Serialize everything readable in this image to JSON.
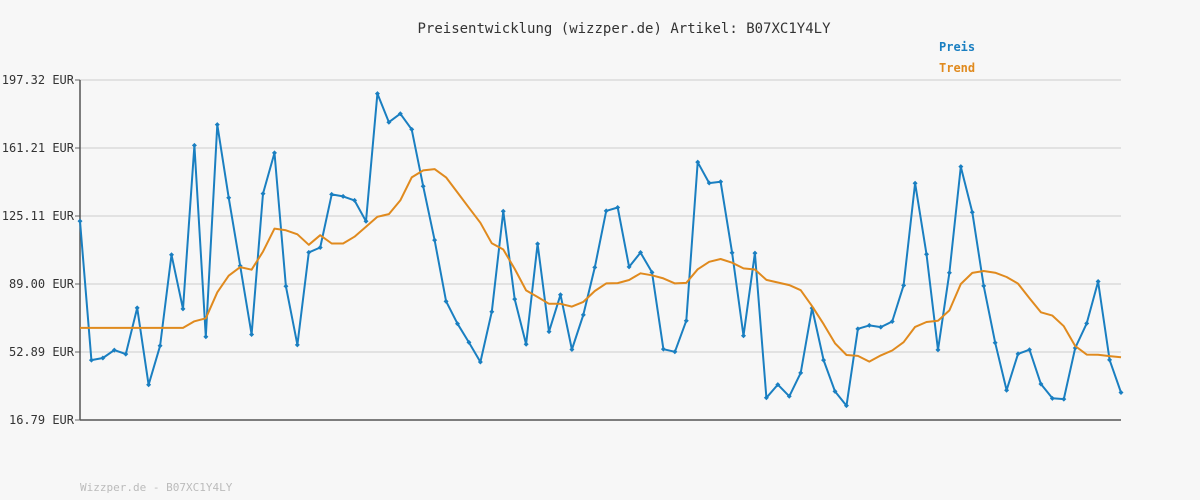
{
  "chart_data": {
    "type": "line",
    "title": "Preisentwicklung (wizzper.de) Artikel: B07XC1Y4LY",
    "footer": "Wizzper.de - B07XC1Y4LY",
    "y_tick_values": [
      16.79,
      52.89,
      89.0,
      125.11,
      161.21,
      197.32
    ],
    "y_tick_labels": [
      "16.79 EUR",
      "52.89 EUR",
      "89.00 EUR",
      "125.11 EUR",
      "161.21 EUR",
      "197.32 EUR"
    ],
    "ylim": [
      16.79,
      197.32
    ],
    "grid": true,
    "legend_position": "top-right",
    "series": [
      {
        "name": "Preis",
        "color": "#1a7fc1",
        "values": [
          122.4,
          48.6,
          49.7,
          53.9,
          51.8,
          76.3,
          35.5,
          56.2,
          104.5,
          75.8,
          162.6,
          61.0,
          173.6,
          134.8,
          98.6,
          62.2,
          137.0,
          158.6,
          87.8,
          56.7,
          105.8,
          108.4,
          136.6,
          135.5,
          133.4,
          122.3,
          190.1,
          174.9,
          179.4,
          171.1,
          140.9,
          112.3,
          79.8,
          67.9,
          58.0,
          47.6,
          74.3,
          127.6,
          81.0,
          57.0,
          110.3,
          63.7,
          83.3,
          54.2,
          72.6,
          97.8,
          127.8,
          129.6,
          98.1,
          105.7,
          95.2,
          54.4,
          53.0,
          69.5,
          153.7,
          142.6,
          143.3,
          105.6,
          61.5,
          105.4,
          28.6,
          35.6,
          29.4,
          41.8,
          76.2,
          48.6,
          32.0,
          24.4,
          65.2,
          67.0,
          66.1,
          69.1,
          88.3,
          142.5,
          104.8,
          54.0,
          95.0,
          151.3,
          127.1,
          88.0,
          57.8,
          32.6,
          51.9,
          54.1,
          35.9,
          28.3,
          27.9,
          55.0,
          68.1,
          90.3,
          48.7,
          31.4
        ]
      },
      {
        "name": "Trend",
        "color": "#e08a1e",
        "values": [
          65.7,
          65.7,
          65.7,
          65.7,
          65.7,
          65.7,
          65.7,
          65.7,
          65.7,
          65.7,
          69.2,
          70.8,
          84.6,
          93.4,
          98.0,
          96.6,
          106.2,
          118.4,
          117.5,
          115.4,
          109.8,
          114.9,
          110.5,
          110.5,
          114.1,
          119.4,
          124.7,
          126.1,
          133.4,
          145.6,
          149.3,
          150.0,
          145.6,
          137.6,
          129.5,
          121.5,
          110.6,
          107.3,
          97.0,
          85.6,
          82.1,
          78.5,
          78.5,
          77.0,
          79.5,
          85.3,
          89.3,
          89.5,
          91.1,
          94.7,
          93.6,
          92.0,
          89.3,
          89.6,
          96.8,
          100.8,
          102.3,
          100.3,
          97.3,
          96.7,
          91.2,
          89.8,
          88.4,
          85.7,
          77.2,
          67.7,
          57.5,
          51.3,
          50.8,
          47.8,
          51.1,
          53.7,
          58.1,
          66.2,
          68.8,
          69.5,
          75.0,
          89.0,
          94.9,
          95.9,
          95.0,
          92.7,
          89.2,
          81.4,
          74.0,
          72.2,
          66.6,
          56.1,
          51.5,
          51.4,
          50.7,
          50.1
        ]
      }
    ]
  }
}
